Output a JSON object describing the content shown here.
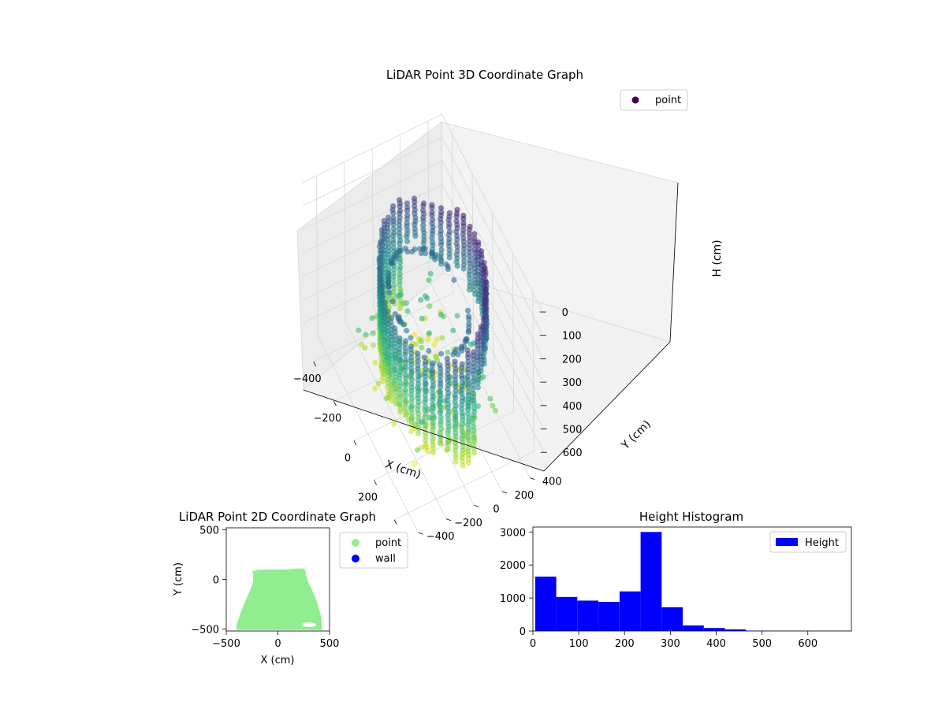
{
  "chart_data": [
    {
      "type": "scatter",
      "title": "LiDAR Point 3D Coordinate Graph",
      "xlabel": "X (cm)",
      "ylabel": "Y (cm)",
      "zlabel": "H (cm)",
      "xticks": [
        "−400",
        "−200",
        "0",
        "200",
        "400"
      ],
      "yticks": [
        "−400",
        "−200",
        "0",
        "200",
        "400"
      ],
      "zticks": [
        "0",
        "100",
        "200",
        "300",
        "400",
        "500",
        "600"
      ],
      "xlim": [
        -500,
        500
      ],
      "ylim": [
        -500,
        500
      ],
      "zlim": [
        0,
        680
      ],
      "z_axis_inverted": true,
      "colormap": "viridis",
      "legend": {
        "position": "top-right",
        "entries": [
          {
            "label": "point",
            "color": "#440154"
          }
        ]
      },
      "grid": true,
      "series": [
        {
          "name": "point",
          "description_shape": "ring-shaped wall of vertical point columns, height 0–680 cm"
        }
      ]
    },
    {
      "type": "scatter",
      "title": "LiDAR Point 2D Coordinate Graph",
      "xlabel": "X (cm)",
      "ylabel": "Y (cm)",
      "xticks": [
        "−500",
        "0",
        "500"
      ],
      "yticks": [
        "500",
        "0",
        "−500"
      ],
      "xlim": [
        -500,
        500
      ],
      "ylim": [
        -520,
        520
      ],
      "legend": {
        "position": "outside-right",
        "entries": [
          {
            "label": "point",
            "color": "#90ee90"
          },
          {
            "label": "wall",
            "color": "#0000ff"
          }
        ]
      },
      "series": [
        {
          "name": "point",
          "color": "#90ee90",
          "outline": [
            [
              -240,
              50
            ],
            [
              -250,
              80
            ],
            [
              -200,
              95
            ],
            [
              -100,
              100
            ],
            [
              0,
              100
            ],
            [
              100,
              102
            ],
            [
              180,
              110
            ],
            [
              260,
              110
            ],
            [
              270,
              60
            ],
            [
              290,
              -20
            ],
            [
              330,
              -100
            ],
            [
              380,
              -230
            ],
            [
              420,
              -380
            ],
            [
              430,
              -480
            ],
            [
              430,
              -510
            ],
            [
              -400,
              -510
            ],
            [
              -400,
              -460
            ],
            [
              -360,
              -330
            ],
            [
              -300,
              -180
            ],
            [
              -260,
              -90
            ],
            [
              -240,
              -20
            ]
          ]
        },
        {
          "name": "wall",
          "color": "#0000ff",
          "points": []
        }
      ]
    },
    {
      "type": "bar",
      "title": "Height Histogram",
      "legend": {
        "position": "top-right",
        "entries": [
          {
            "label": "Height",
            "color": "#0000ff"
          }
        ]
      },
      "xticks": [
        "0",
        "100",
        "200",
        "300",
        "400",
        "500",
        "600"
      ],
      "yticks": [
        "0",
        "1000",
        "2000",
        "3000"
      ],
      "xlim": [
        0,
        695
      ],
      "ylim": [
        0,
        3150
      ],
      "bin_edges": [
        5,
        51,
        97,
        143,
        189,
        235,
        281,
        327,
        373,
        419,
        465,
        511,
        557,
        603,
        649,
        695
      ],
      "values": [
        1650,
        1030,
        920,
        880,
        1200,
        3000,
        720,
        170,
        90,
        50,
        10,
        5,
        5,
        5,
        5
      ],
      "color": "#0000ff"
    }
  ]
}
